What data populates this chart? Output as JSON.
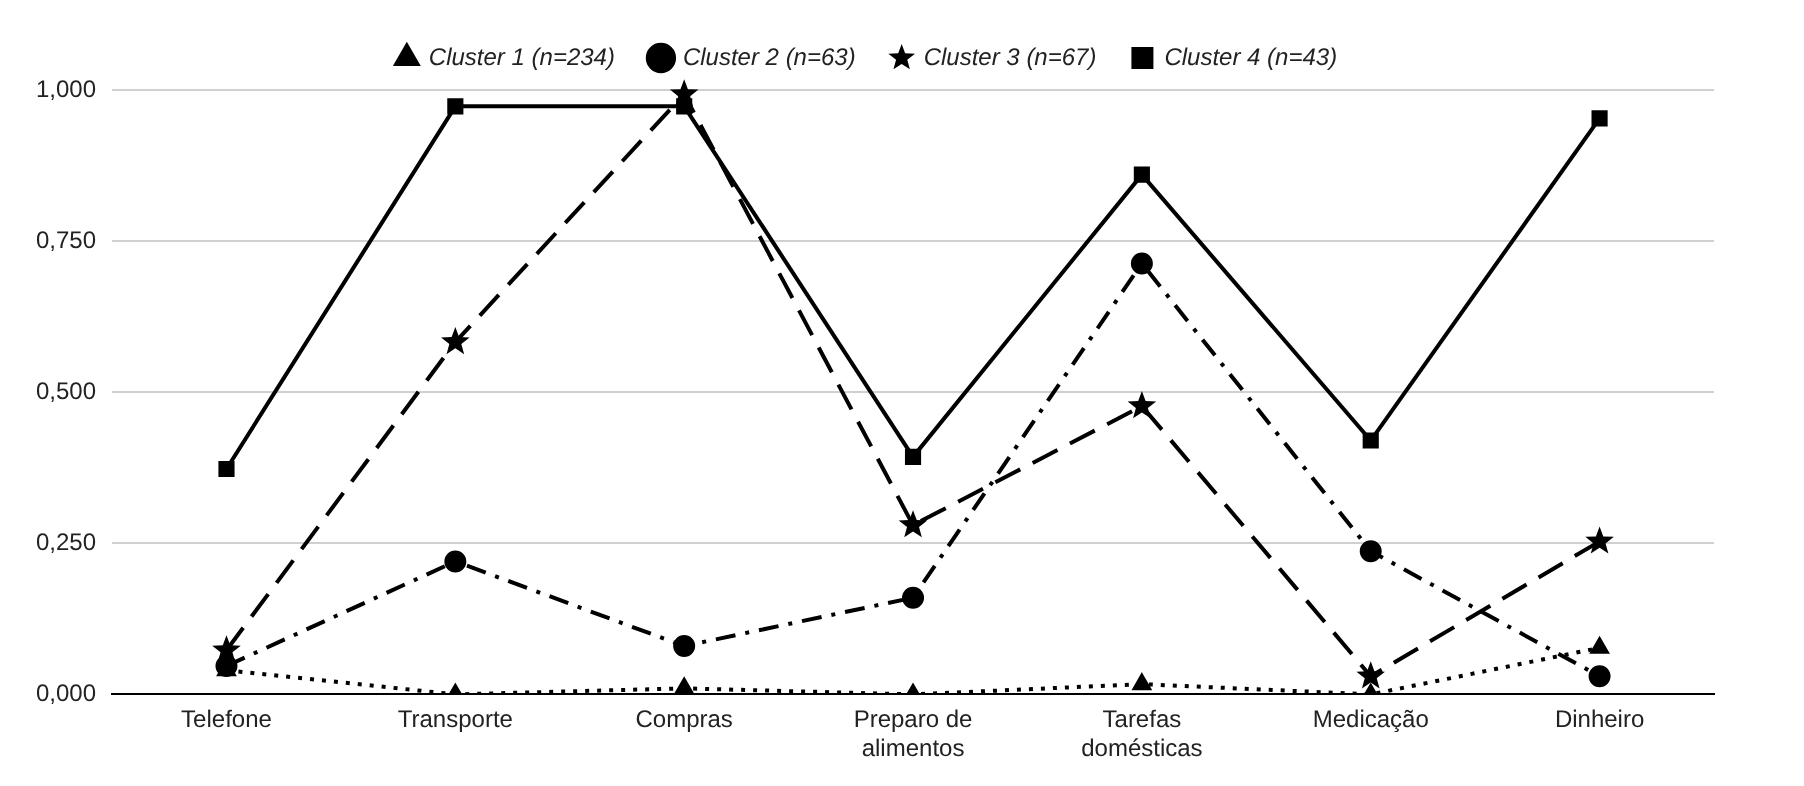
{
  "chart_data": {
    "type": "line",
    "categories": [
      "Telefone",
      "Transporte",
      "Compras",
      "Preparo de alimentos",
      "Tarefas domésticas",
      "Medicação",
      "Dinheiro"
    ],
    "series": [
      {
        "name": "Cluster 1 (n=234)",
        "color": "#000000",
        "marker": "triangle",
        "line_style": "dotted",
        "values": [
          0.04,
          0,
          0.01,
          0,
          0.017,
          0,
          0.077
        ]
      },
      {
        "name": "Cluster 2 (n=63)",
        "color": "#000000",
        "marker": "circle",
        "line_style": "dashdot",
        "values": [
          0.047,
          0.22,
          0.08,
          0.16,
          0.713,
          0.237,
          0.03
        ]
      },
      {
        "name": "Cluster 3 (n=67)",
        "color": "#000000",
        "marker": "star",
        "line_style": "dashed",
        "values": [
          0.073,
          0.583,
          0.993,
          0.28,
          0.477,
          0.03,
          0.253
        ]
      },
      {
        "name": "Cluster 4 (n=43)",
        "color": "#000000",
        "marker": "square",
        "line_style": "solid",
        "values": [
          0.373,
          0.973,
          0.973,
          0.393,
          0.86,
          0.42,
          0.953
        ]
      }
    ],
    "ylim": [
      0,
      1
    ],
    "yticks": [
      {
        "value": 0,
        "label": "0,000"
      },
      {
        "value": 0.25,
        "label": "0,250"
      },
      {
        "value": 0.5,
        "label": "0,500"
      },
      {
        "value": 0.75,
        "label": "0,750"
      },
      {
        "value": 1,
        "label": "1,000"
      }
    ],
    "grid": "y",
    "legend": "top"
  }
}
